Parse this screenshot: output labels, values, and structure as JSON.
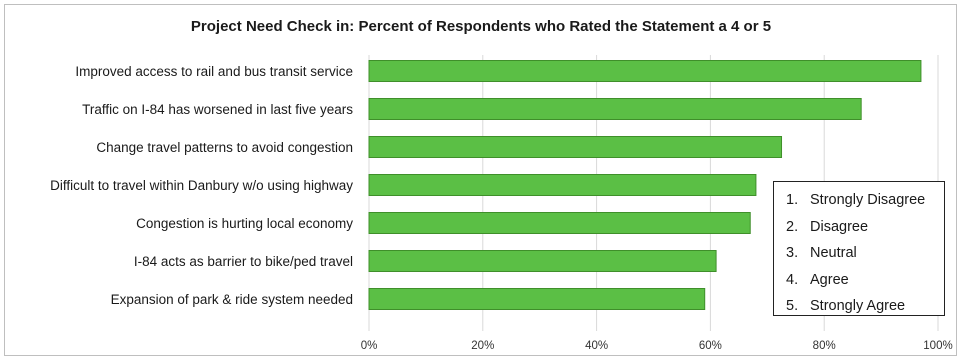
{
  "chart_data": {
    "type": "bar",
    "orientation": "horizontal",
    "title": "Project Need Check in: Percent of Respondents who Rated the Statement a 4 or 5",
    "categories": [
      "Improved access to rail and bus transit service",
      "Traffic on I-84 has worsened in last five years",
      "Change travel patterns to avoid congestion",
      "Difficult to travel within Danbury w/o using highway",
      "Congestion is hurting local economy",
      "I-84 acts as barrier to bike/ped travel",
      "Expansion of park & ride system needed"
    ],
    "values": [
      0.97,
      0.865,
      0.725,
      0.68,
      0.67,
      0.61,
      0.59
    ],
    "xlim": [
      0,
      1
    ],
    "x_ticks": [
      0,
      0.2,
      0.4,
      0.6,
      0.8,
      1.0
    ],
    "x_tick_labels": [
      "0%",
      "20%",
      "40%",
      "60%",
      "80%",
      "100%"
    ],
    "grid": true,
    "bar_color": "#5bbf45",
    "legend_placement": "bottom-right",
    "legend_items": [
      {
        "num": "1.",
        "label": "Strongly Disagree"
      },
      {
        "num": "2.",
        "label": "Disagree"
      },
      {
        "num": "3.",
        "label": "Neutral"
      },
      {
        "num": "4.",
        "label": "Agree"
      },
      {
        "num": "5.",
        "label": "Strongly Agree"
      }
    ]
  }
}
